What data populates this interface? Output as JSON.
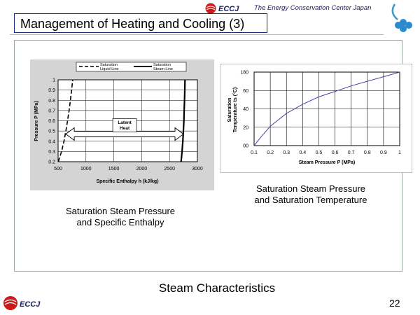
{
  "header": {
    "logo_text": "ECCJ",
    "org_name": "The Energy Conservation Center Japan",
    "title": "Management of Heating and Cooling (3)"
  },
  "chart_data": [
    {
      "type": "line",
      "xlabel": "Specific Enthalpy h (kJ/kg)",
      "ylabel": "Pressure P (MPa)",
      "xlim": [
        500,
        3000
      ],
      "ylim": [
        0.2,
        1.0
      ],
      "x_ticks": [
        "500",
        "1000",
        "1500",
        "2000",
        "2500",
        "3000"
      ],
      "y_ticks": [
        "0.2",
        "0.3",
        "0.4",
        "0.5",
        "0.6",
        "0.7",
        "0.8",
        "0.9",
        "1"
      ],
      "grid": true,
      "legend": "top",
      "series": [
        {
          "name": "Saturation Liquid Line",
          "style": "dashed",
          "points": [
            [
              504,
              0.2
            ],
            [
              561,
              0.3
            ],
            [
              605,
              0.4
            ],
            [
              640,
              0.5
            ],
            [
              670,
              0.6
            ],
            [
              697,
              0.7
            ],
            [
              721,
              0.8
            ],
            [
              743,
              0.9
            ],
            [
              763,
              1.0
            ]
          ]
        },
        {
          "name": "Saturation Steam Line",
          "style": "solid",
          "points": [
            [
              2707,
              0.2
            ],
            [
              2725,
              0.3
            ],
            [
              2739,
              0.4
            ],
            [
              2749,
              0.5
            ],
            [
              2757,
              0.6
            ],
            [
              2763,
              0.7
            ],
            [
              2769,
              0.8
            ],
            [
              2774,
              0.9
            ],
            [
              2778,
              1.0
            ]
          ]
        }
      ],
      "annotation": {
        "line1": "Latent",
        "line2": "Heat",
        "y": 0.47,
        "x_from": 640,
        "x_to": 2749
      },
      "caption": {
        "line1": "Saturation Steam Pressure",
        "line2": "and Specific Enthalpy"
      }
    },
    {
      "type": "line",
      "xlabel": "Steam Pressure P (MPa)",
      "ylabel_line1": "Saturation",
      "ylabel_line2": "Temperature ts (°C)",
      "xlim": [
        0.1,
        1.0
      ],
      "ylim": [
        0,
        180
      ],
      "x_ticks": [
        "0.1",
        "0.2",
        "0.3",
        "0.4",
        "0.5",
        "0.6",
        "0.7",
        "0.8",
        "0.9",
        "1"
      ],
      "y_ticks": [
        "00",
        "20",
        "40",
        "60",
        "80",
        "180"
      ],
      "grid": true,
      "series": [
        {
          "name": "",
          "points": [
            [
              0.1,
              0
            ],
            [
              0.15,
              11
            ],
            [
              0.2,
              21
            ],
            [
              0.3,
              35
            ],
            [
              0.4,
              45
            ],
            [
              0.5,
              53
            ],
            [
              0.6,
              59
            ],
            [
              0.7,
              65
            ],
            [
              0.8,
              70
            ],
            [
              0.9,
              75
            ],
            [
              1.0,
              80
            ]
          ]
        }
      ],
      "caption": {
        "line1": "Saturation Steam Pressure",
        "line2": "and Saturation Temperature"
      }
    }
  ],
  "footer": {
    "title": "Steam Characteristics",
    "page_number": "22",
    "logo_text": "ECCJ"
  },
  "colors": {
    "title_border": "#1a2a7a",
    "logo_red": "#cc1a1a",
    "right_curve": "#4444aa",
    "frame": "#9aaa9a"
  }
}
